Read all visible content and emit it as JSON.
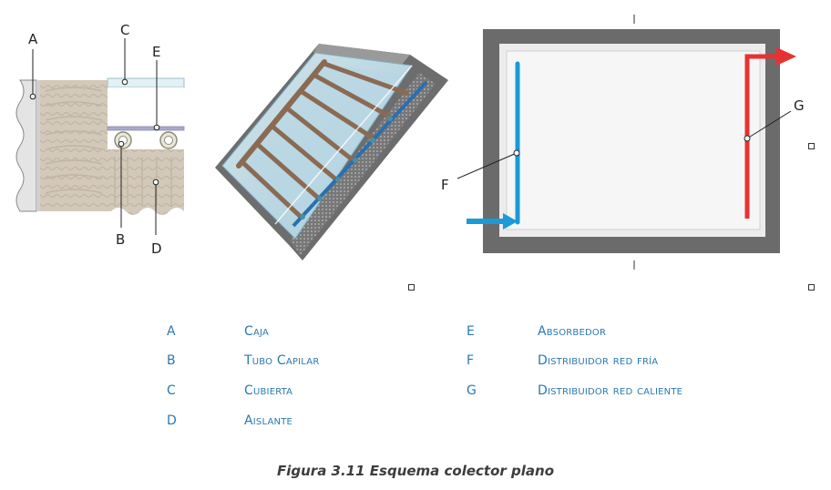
{
  "labels": {
    "a": "A",
    "b": "B",
    "c": "C",
    "d": "D",
    "e": "E",
    "f": "F",
    "g": "G"
  },
  "legend": [
    {
      "key": "A",
      "value": "Caja"
    },
    {
      "key": "B",
      "value": "Tubo Capilar"
    },
    {
      "key": "C",
      "value": "Cubierta"
    },
    {
      "key": "D",
      "value": "Aislante"
    },
    {
      "key": "E",
      "value": "Absorbedor"
    },
    {
      "key": "F",
      "value": "Distribuidor red fría"
    },
    {
      "key": "G",
      "value": "Distribuidor red caliente"
    }
  ],
  "caption": "Figura 3.11 Esquema colector plano",
  "colors": {
    "legend_text": "#2a78b3",
    "cold": "#1a9ad6",
    "hot": "#e63232",
    "frame": "#6b6b6b",
    "pipe": "#8b6a52"
  }
}
